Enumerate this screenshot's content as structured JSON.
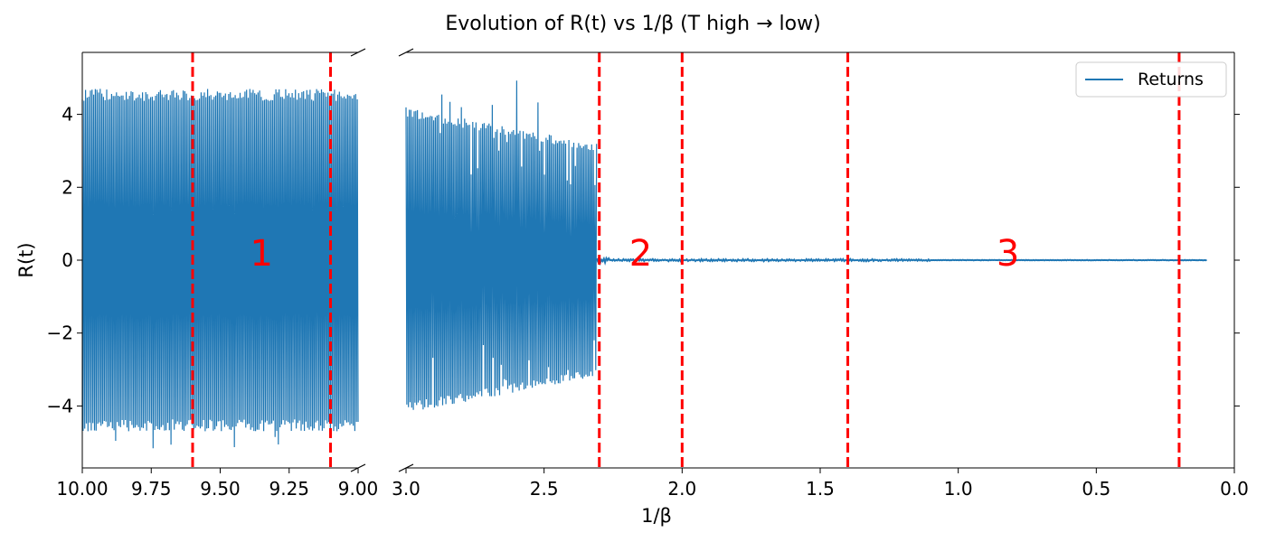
{
  "chart_data": {
    "type": "line",
    "title": "Evolution of R(t) vs 1/β (T high → low)",
    "xlabel": "1/β",
    "ylabel": "R(t)",
    "broken_x_axis": true,
    "x_direction": "decreasing",
    "panels": [
      {
        "xlim": [
          10.0,
          9.0
        ],
        "xticks": [
          10.0,
          9.75,
          9.5,
          9.25,
          9.0
        ],
        "xtick_labels": [
          "10.00",
          "9.75",
          "9.50",
          "9.25",
          "9.00"
        ]
      },
      {
        "xlim": [
          3.0,
          0.0
        ],
        "xticks": [
          3.0,
          2.5,
          2.0,
          1.5,
          1.0,
          0.5,
          0.0
        ],
        "xtick_labels": [
          "3.0",
          "2.5",
          "2.0",
          "1.5",
          "1.0",
          "0.5",
          "0.0"
        ]
      }
    ],
    "ylim": [
      -5.7,
      5.7
    ],
    "yticks": [
      -4,
      -2,
      0,
      2,
      4
    ],
    "ytick_labels": [
      "−4",
      "−2",
      "0",
      "2",
      "4"
    ],
    "series": [
      {
        "name": "Returns",
        "color": "#1f77b4",
        "segments": [
          {
            "x_range": [
              10.0,
              9.0
            ],
            "amplitude": 4.7,
            "peak": 5.2
          },
          {
            "x_range": [
              3.0,
              2.31
            ],
            "amplitude": 4.2,
            "peak": 5.0,
            "decay_to": 3.2
          },
          {
            "x_range": [
              2.31,
              0.1
            ],
            "amplitude": 0.03
          }
        ]
      }
    ],
    "vlines": {
      "color": "#ff0000",
      "style": "dashed",
      "x": [
        9.6,
        9.1,
        2.3,
        2.0,
        1.4,
        0.2
      ]
    },
    "annotations": [
      {
        "text": "1",
        "x": 9.35,
        "y": 0.2
      },
      {
        "text": "2",
        "x": 2.15,
        "y": 0.2
      },
      {
        "text": "3",
        "x": 0.82,
        "y": 0.2
      }
    ],
    "legend": {
      "placement": "top-right",
      "entries": [
        "Returns"
      ]
    },
    "grid": false
  }
}
